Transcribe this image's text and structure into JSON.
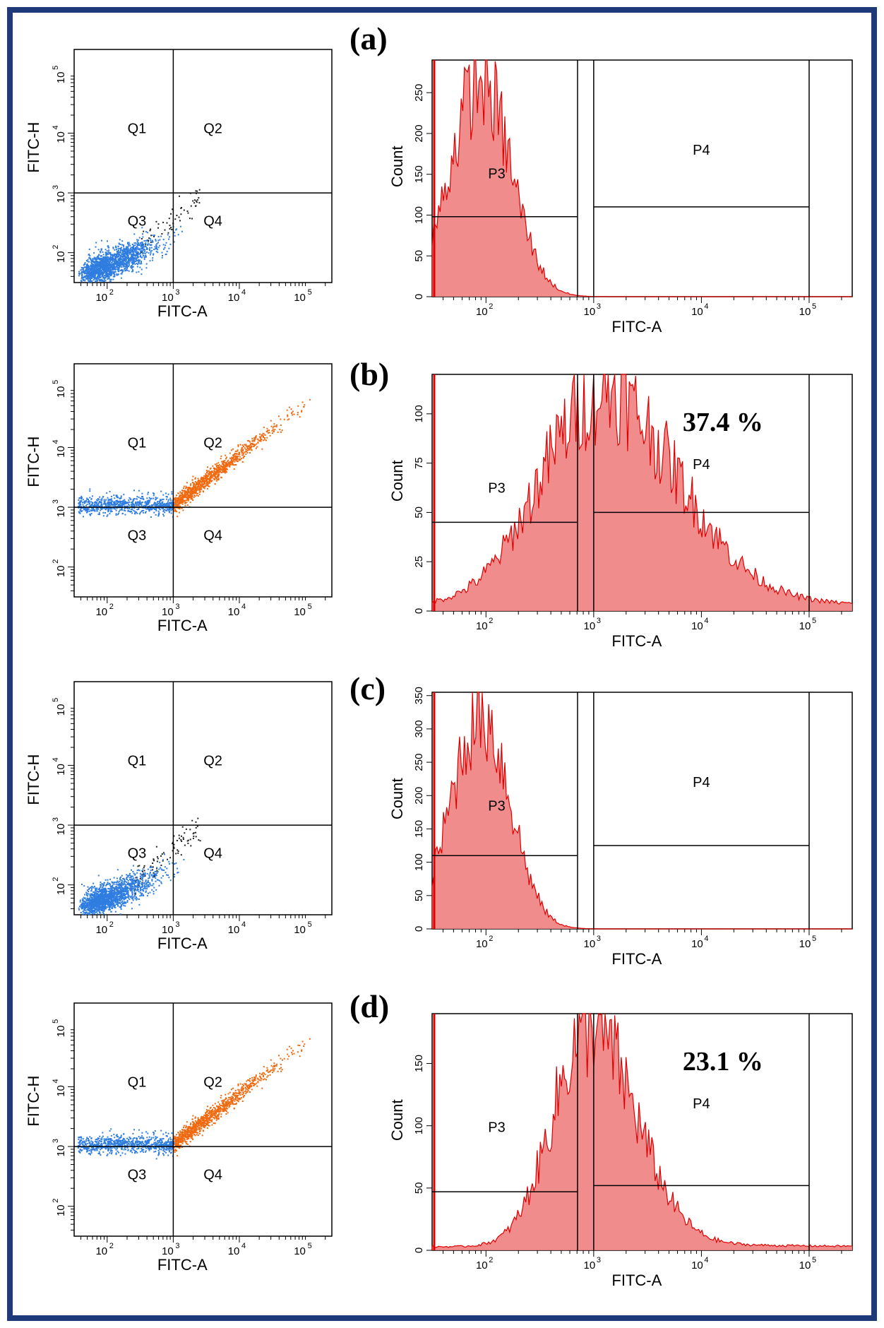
{
  "colors": {
    "border": "#1e3a78",
    "q3_events": "#2f7de0",
    "q1_events": "#2f7de0",
    "q2_events": "#ef6a10",
    "histogram_fill": "#f08080",
    "histogram_line": "#e00000",
    "gate_line": "#000000"
  },
  "chart_data": [
    {
      "panel": "(a)",
      "type": "scatter",
      "xlabel": "FITC-A",
      "ylabel": "FITC-H",
      "xticks": [
        "10",
        "10",
        "10",
        "10"
      ],
      "xtick_exps": [
        "2",
        "3",
        "4",
        "5"
      ],
      "yticks": [
        "10",
        "10",
        "10",
        "10"
      ],
      "ytick_exps": [
        "2",
        "3",
        "4",
        "5"
      ],
      "quadrants": [
        "Q1",
        "Q2",
        "Q3",
        "Q4"
      ],
      "population": "negative",
      "xlim_log10": [
        1.5,
        5.4
      ],
      "ylim_log10": [
        1.5,
        5.4
      ],
      "gate_log10": {
        "x": 3.0,
        "y": 3.0
      }
    },
    {
      "panel": "(a)",
      "type": "histogram",
      "xlabel": "FITC-A",
      "ylabel": "Count",
      "xticks": [
        "10",
        "10",
        "10",
        "10"
      ],
      "xtick_exps": [
        "2",
        "3",
        "4",
        "5"
      ],
      "yticks": [
        "0",
        "50",
        "100",
        "150",
        "200",
        "250"
      ],
      "ytick_values": [
        0,
        50,
        100,
        150,
        200,
        250
      ],
      "ylim": [
        0,
        290
      ],
      "xlim_log10": [
        1.5,
        5.4
      ],
      "peak_log10": 1.95,
      "peak_count": 280,
      "width_log10": 0.28,
      "gates": [
        {
          "label": "P3",
          "x_log10": [
            1.5,
            2.85
          ],
          "y": 98
        },
        {
          "label": "P4",
          "x_log10": [
            3.0,
            5.0
          ],
          "y": 110
        }
      ],
      "percentage": ""
    },
    {
      "panel": "(b)",
      "type": "scatter",
      "xlabel": "FITC-A",
      "ylabel": "FITC-H",
      "xticks": [
        "10",
        "10",
        "10",
        "10"
      ],
      "xtick_exps": [
        "2",
        "3",
        "4",
        "5"
      ],
      "yticks": [
        "10",
        "10",
        "10",
        "10"
      ],
      "ytick_exps": [
        "2",
        "3",
        "4",
        "5"
      ],
      "quadrants": [
        "Q1",
        "Q2",
        "Q3",
        "Q4"
      ],
      "population": "positive",
      "xlim_log10": [
        1.5,
        5.4
      ],
      "ylim_log10": [
        1.5,
        5.4
      ],
      "gate_log10": {
        "x": 3.0,
        "y": 3.0
      }
    },
    {
      "panel": "(b)",
      "type": "histogram",
      "xlabel": "FITC-A",
      "ylabel": "Count",
      "xticks": [
        "10",
        "10",
        "10",
        "10"
      ],
      "xtick_exps": [
        "2",
        "3",
        "4",
        "5"
      ],
      "yticks": [
        "0",
        "25",
        "50",
        "75",
        "100"
      ],
      "ytick_values": [
        0,
        25,
        50,
        75,
        100
      ],
      "ylim": [
        0,
        120
      ],
      "xlim_log10": [
        1.5,
        5.4
      ],
      "peak_log10": 3.05,
      "peak_count": 112,
      "width_log10": 0.55,
      "gates": [
        {
          "label": "P3",
          "x_log10": [
            1.5,
            2.85
          ],
          "y": 45
        },
        {
          "label": "P4",
          "x_log10": [
            3.0,
            5.0
          ],
          "y": 50
        }
      ],
      "percentage": "37.4 %"
    },
    {
      "panel": "(c)",
      "type": "scatter",
      "xlabel": "FITC-A",
      "ylabel": "FITC-H",
      "xticks": [
        "10",
        "10",
        "10",
        "10"
      ],
      "xtick_exps": [
        "2",
        "3",
        "4",
        "5"
      ],
      "yticks": [
        "10",
        "10",
        "10",
        "10"
      ],
      "ytick_exps": [
        "2",
        "3",
        "4",
        "5"
      ],
      "quadrants": [
        "Q1",
        "Q2",
        "Q3",
        "Q4"
      ],
      "population": "negative",
      "xlim_log10": [
        1.5,
        5.4
      ],
      "ylim_log10": [
        1.5,
        5.4
      ],
      "gate_log10": {
        "x": 3.0,
        "y": 3.0
      }
    },
    {
      "panel": "(c)",
      "type": "histogram",
      "xlabel": "FITC-A",
      "ylabel": "Count",
      "xticks": [
        "10",
        "10",
        "10",
        "10"
      ],
      "xtick_exps": [
        "2",
        "3",
        "4",
        "5"
      ],
      "yticks": [
        "0",
        "50",
        "100",
        "150",
        "200",
        "250",
        "300",
        "350"
      ],
      "ytick_values": [
        0,
        50,
        100,
        150,
        200,
        250,
        300,
        350
      ],
      "ylim": [
        0,
        355
      ],
      "xlim_log10": [
        1.5,
        5.4
      ],
      "peak_log10": 1.95,
      "peak_count": 345,
      "width_log10": 0.27,
      "gates": [
        {
          "label": "P3",
          "x_log10": [
            1.5,
            2.85
          ],
          "y": 110
        },
        {
          "label": "P4",
          "x_log10": [
            3.0,
            5.0
          ],
          "y": 125
        }
      ],
      "percentage": ""
    },
    {
      "panel": "(d)",
      "type": "scatter",
      "xlabel": "FITC-A",
      "ylabel": "FITC-H",
      "xticks": [
        "10",
        "10",
        "10",
        "10"
      ],
      "xtick_exps": [
        "2",
        "3",
        "4",
        "5"
      ],
      "yticks": [
        "10",
        "10",
        "10",
        "10"
      ],
      "ytick_exps": [
        "2",
        "3",
        "4",
        "5"
      ],
      "quadrants": [
        "Q1",
        "Q2",
        "Q3",
        "Q4"
      ],
      "population": "positive",
      "xlim_log10": [
        1.5,
        5.4
      ],
      "ylim_log10": [
        1.5,
        5.4
      ],
      "gate_log10": {
        "x": 3.0,
        "y": 3.0
      }
    },
    {
      "panel": "(d)",
      "type": "histogram",
      "xlabel": "FITC-A",
      "ylabel": "Count",
      "xticks": [
        "10",
        "10",
        "10",
        "10"
      ],
      "xtick_exps": [
        "2",
        "3",
        "4",
        "5"
      ],
      "yticks": [
        "0",
        "50",
        "100",
        "150"
      ],
      "ytick_values": [
        0,
        50,
        100,
        150
      ],
      "ylim": [
        0,
        190
      ],
      "xlim_log10": [
        1.5,
        5.4
      ],
      "peak_log10": 2.95,
      "peak_count": 185,
      "width_log10": 0.33,
      "gates": [
        {
          "label": "P3",
          "x_log10": [
            1.5,
            2.85
          ],
          "y": 47
        },
        {
          "label": "P4",
          "x_log10": [
            3.0,
            5.0
          ],
          "y": 52
        }
      ],
      "percentage": "23.1 %"
    }
  ]
}
